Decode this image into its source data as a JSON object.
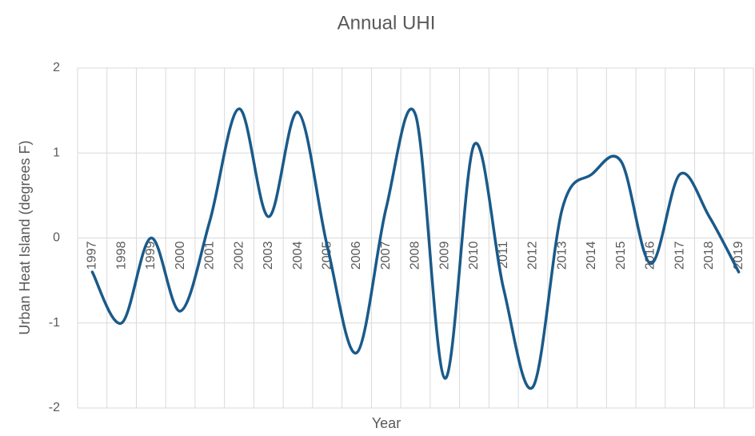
{
  "chart_data": {
    "type": "line",
    "title": "Annual UHI",
    "x_label": "Year",
    "y_label": "Urban Heat Island (degrees F)",
    "categories": [
      "1997",
      "1998",
      "1999",
      "2000",
      "2001",
      "2002",
      "2003",
      "2004",
      "2005",
      "2006",
      "2007",
      "2008",
      "2009",
      "2010",
      "2011",
      "2012",
      "2013",
      "2014",
      "2015",
      "2016",
      "2017",
      "2018",
      "2019"
    ],
    "series": [
      {
        "name": "UHI",
        "color": "#1a5a8a",
        "values": [
          -0.4,
          -1.0,
          0.0,
          -0.86,
          0.2,
          1.52,
          0.25,
          1.48,
          -0.1,
          -1.35,
          0.35,
          1.45,
          -1.65,
          1.1,
          -0.6,
          -1.75,
          0.35,
          0.75,
          0.9,
          -0.3,
          0.75,
          0.25,
          -0.4
        ]
      }
    ],
    "ylim": [
      -2,
      2
    ],
    "yticks": [
      -2,
      -1,
      0,
      1,
      2
    ],
    "grid": true,
    "smooth": true
  }
}
